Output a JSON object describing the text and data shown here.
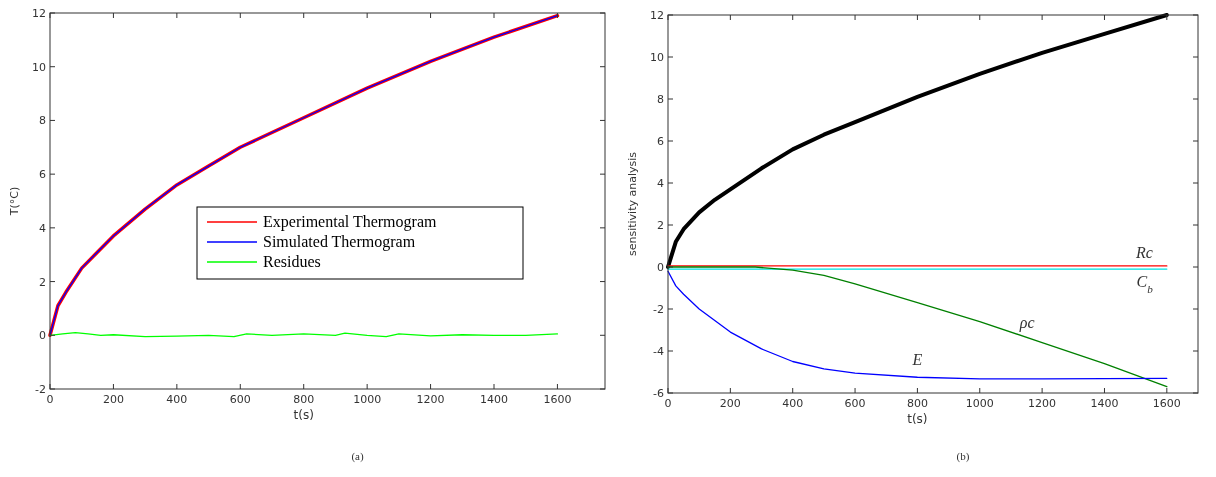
{
  "chart_data": [
    {
      "type": "line",
      "xlabel": "t(s)",
      "ylabel": "T(°C)",
      "xlim": [
        0,
        1750
      ],
      "ylim": [
        -2,
        12
      ],
      "xticks": [
        0,
        200,
        400,
        600,
        800,
        1000,
        1200,
        1400,
        1600
      ],
      "yticks": [
        -2,
        0,
        2,
        4,
        6,
        8,
        10,
        12
      ],
      "grid": false,
      "legend": "center",
      "line_style": "solid",
      "annotations": [
        "(a)"
      ],
      "series": [
        {
          "name": "Experimental Thermogram",
          "color": "#ff0000",
          "x": [
            0,
            25,
            50,
            100,
            150,
            200,
            300,
            400,
            500,
            600,
            800,
            1000,
            1200,
            1400,
            1600
          ],
          "values": [
            0,
            1.1,
            1.6,
            2.5,
            3.1,
            3.7,
            4.7,
            5.6,
            6.3,
            7.0,
            8.1,
            9.2,
            10.2,
            11.1,
            11.9
          ]
        },
        {
          "name": "Simulated Thermogram",
          "color": "#0000ff",
          "x": [
            0,
            25,
            50,
            100,
            150,
            200,
            300,
            400,
            500,
            600,
            800,
            1000,
            1200,
            1400,
            1600
          ],
          "values": [
            0,
            1.1,
            1.6,
            2.5,
            3.1,
            3.7,
            4.7,
            5.6,
            6.3,
            7.0,
            8.1,
            9.2,
            10.2,
            11.1,
            11.9
          ]
        },
        {
          "name": "Residues",
          "color": "#00ff00",
          "x": [
            0,
            40,
            80,
            120,
            160,
            200,
            300,
            400,
            500,
            580,
            620,
            700,
            800,
            900,
            930,
            1000,
            1060,
            1100,
            1200,
            1300,
            1400,
            1500,
            1600
          ],
          "values": [
            0,
            0.05,
            0.1,
            0.05,
            0,
            0.02,
            -0.05,
            -0.03,
            0,
            -0.05,
            0.05,
            0,
            0.05,
            0,
            0.08,
            0,
            -0.05,
            0.05,
            -0.02,
            0.02,
            0,
            0,
            0.05
          ]
        }
      ]
    },
    {
      "type": "line",
      "xlabel": "t(s)",
      "ylabel": "sensitivity analysis",
      "xlim": [
        0,
        1700
      ],
      "ylim": [
        -6,
        12
      ],
      "xticks": [
        0,
        200,
        400,
        600,
        800,
        1000,
        1200,
        1400,
        1600
      ],
      "yticks": [
        -6,
        -4,
        -2,
        0,
        2,
        4,
        6,
        8,
        10,
        12
      ],
      "grid": false,
      "legend": false,
      "line_style": "solid",
      "annotations": [
        "(b)"
      ],
      "series": [
        {
          "color": "#000000",
          "x": [
            0,
            25,
            50,
            100,
            150,
            200,
            300,
            400,
            500,
            600,
            800,
            1000,
            1200,
            1400,
            1600
          ],
          "values": [
            0,
            1.2,
            1.8,
            2.6,
            3.2,
            3.7,
            4.7,
            5.6,
            6.3,
            6.9,
            8.1,
            9.2,
            10.2,
            11.1,
            12
          ]
        },
        {
          "name": "Rc",
          "color": "#ff0000",
          "x": [
            0,
            1600
          ],
          "values": [
            0.05,
            0.05
          ]
        },
        {
          "name": "C$_{b}$",
          "color": "#00e0e0",
          "x": [
            0,
            1600
          ],
          "values": [
            -0.1,
            -0.1
          ]
        },
        {
          "name": "ρc",
          "color": "#008000",
          "x": [
            0,
            280,
            400,
            500,
            600,
            800,
            1000,
            1200,
            1400,
            1600
          ],
          "values": [
            0,
            0,
            -0.15,
            -0.4,
            -0.8,
            -1.7,
            -2.6,
            -3.6,
            -4.6,
            -5.7
          ]
        },
        {
          "name": "E",
          "color": "#0000ff",
          "x": [
            0,
            25,
            50,
            100,
            200,
            300,
            400,
            500,
            600,
            800,
            1000,
            1200,
            1400,
            1600
          ],
          "values": [
            -0.2,
            -0.9,
            -1.3,
            -2.0,
            -3.1,
            -3.9,
            -4.5,
            -4.85,
            -5.05,
            -5.25,
            -5.33,
            -5.33,
            -5.32,
            -5.3
          ]
        }
      ]
    }
  ]
}
